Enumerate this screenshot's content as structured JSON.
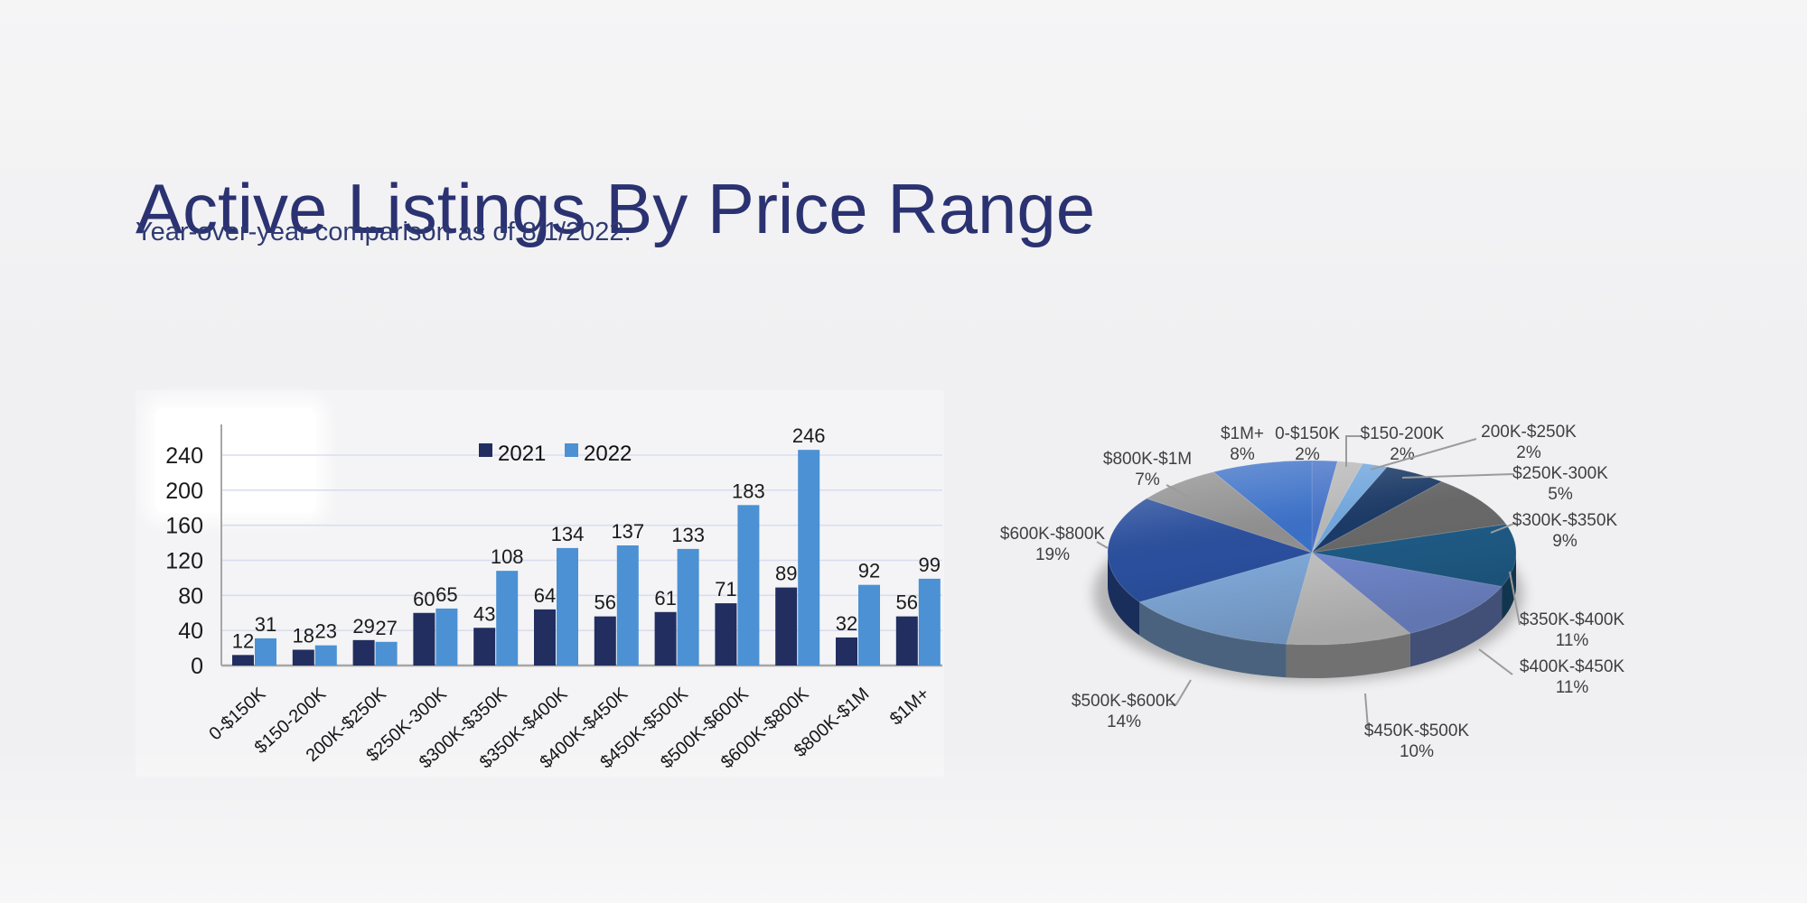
{
  "header": {
    "title": "Active Listings By Price Range",
    "subtitle": "Year-over-year comparison as of 8/1/2022."
  },
  "colors": {
    "title_navy": "#2b3271",
    "bar_2021": "#222e5f",
    "bar_2022": "#4b91d4",
    "gridline": "#d9deed",
    "axis": "#a6a6a6",
    "value_label": "#1a1a1a",
    "pie_label": "#3f3f3f",
    "leader_line": "#9b9b9b",
    "background": "#f1f1f2"
  },
  "chart_data": [
    {
      "type": "bar",
      "title": "",
      "categories": [
        "0-$150K",
        "$150-200K",
        "200K-$250K",
        "$250K-300K",
        "$300K-$350K",
        "$350K-$400K",
        "$400K-$450K",
        "$450K-$500K",
        "$500K-$600K",
        "$600K-$800K",
        "$800K-$1M",
        "$1M+"
      ],
      "series": [
        {
          "name": "2021",
          "color": "#222e5f",
          "values": [
            12,
            18,
            29,
            60,
            43,
            64,
            56,
            61,
            71,
            89,
            32,
            56
          ]
        },
        {
          "name": "2022",
          "color": "#4b91d4",
          "values": [
            31,
            23,
            27,
            65,
            108,
            134,
            137,
            133,
            183,
            246,
            92,
            99
          ]
        }
      ],
      "yticks": [
        0,
        40,
        80,
        120,
        160,
        200,
        240
      ],
      "ylim": [
        0,
        260
      ],
      "grid": true,
      "legend_position": "top",
      "value_labels": true
    },
    {
      "type": "pie",
      "labels": [
        "0-$150K",
        "$150-200K",
        "200K-$250K",
        "$250K-300K",
        "$300K-$350K",
        "$350K-$400K",
        "$400K-$450K",
        "$450K-$500K",
        "$500K-$600K",
        "$600K-$800K",
        "$800K-$1M",
        "$1M+"
      ],
      "values": [
        2,
        2,
        2,
        5,
        9,
        11,
        11,
        10,
        14,
        19,
        7,
        8
      ],
      "unit": "%",
      "colors": [
        "#4673c8",
        "#b9b9b9",
        "#72a7dd",
        "#1b3a66",
        "#686868",
        "#1f5b86",
        "#7289ce",
        "#c2c2c2",
        "#80a9d9",
        "#2b4f9d",
        "#8f8f8f",
        "#3b70c7"
      ],
      "start_angle_deg": 0,
      "direction": "clockwise",
      "effect": "3d",
      "legend_position": "none"
    }
  ]
}
